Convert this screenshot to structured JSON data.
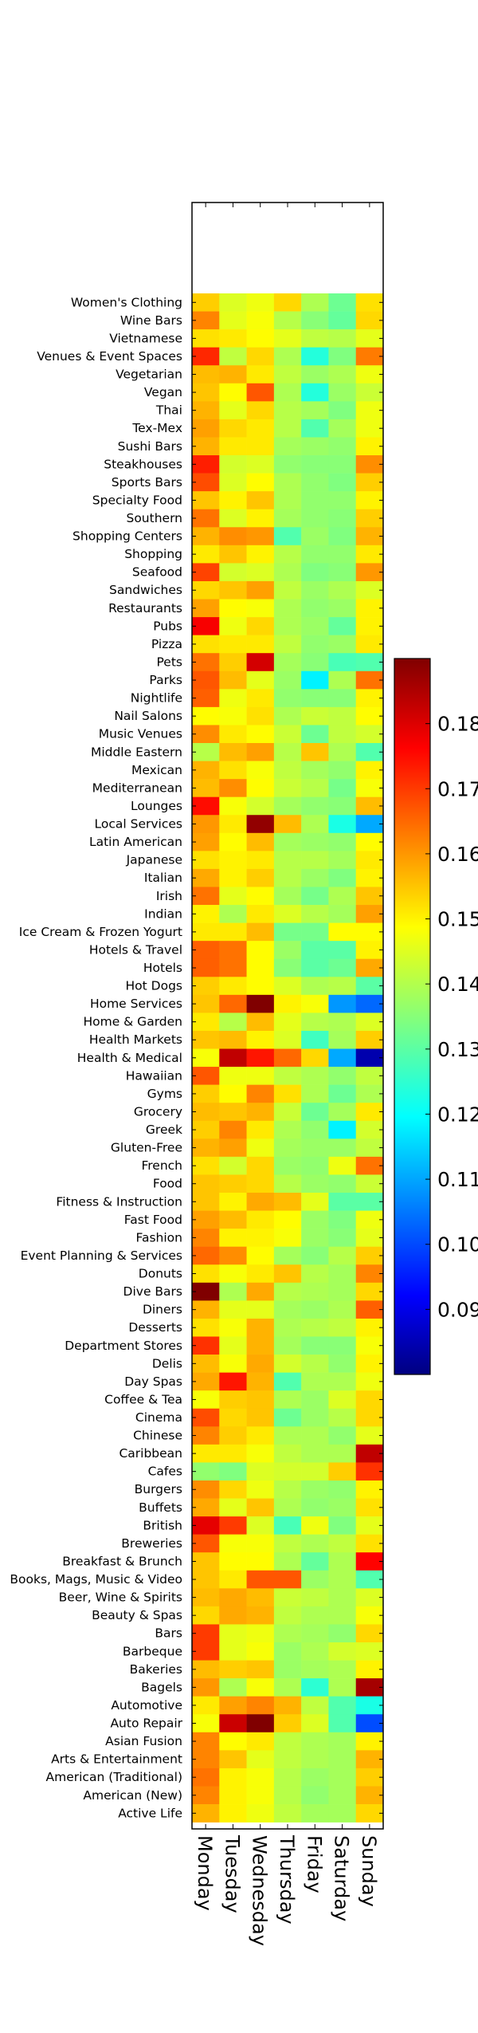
{
  "chart_data": {
    "type": "heatmap",
    "days": [
      "Monday",
      "Tuesday",
      "Wednesday",
      "Thursday",
      "Friday",
      "Saturday",
      "Sunday"
    ],
    "categories": [
      "Women's Clothing",
      "Wine Bars",
      "Vietnamese",
      "Venues & Event Spaces",
      "Vegetarian",
      "Vegan",
      "Thai",
      "Tex-Mex",
      "Sushi Bars",
      "Steakhouses",
      "Sports Bars",
      "Specialty Food",
      "Southern",
      "Shopping Centers",
      "Shopping",
      "Seafood",
      "Sandwiches",
      "Restaurants",
      "Pubs",
      "Pizza",
      "Pets",
      "Parks",
      "Nightlife",
      "Nail Salons",
      "Music Venues",
      "Middle Eastern",
      "Mexican",
      "Mediterranean",
      "Lounges",
      "Local Services",
      "Latin American",
      "Japanese",
      "Italian",
      "Irish",
      "Indian",
      "Ice Cream & Frozen Yogurt",
      "Hotels & Travel",
      "Hotels",
      "Hot Dogs",
      "Home Services",
      "Home & Garden",
      "Health Markets",
      "Health & Medical",
      "Hawaiian",
      "Gyms",
      "Grocery",
      "Greek",
      "Gluten-Free",
      "French",
      "Food",
      "Fitness & Instruction",
      "Fast Food",
      "Fashion",
      "Event Planning & Services",
      "Donuts",
      "Dive Bars",
      "Diners",
      "Desserts",
      "Department Stores",
      "Delis",
      "Day Spas",
      "Coffee & Tea",
      "Cinema",
      "Chinese",
      "Caribbean",
      "Cafes",
      "Burgers",
      "Buffets",
      "British",
      "Breweries",
      "Breakfast & Brunch",
      "Books, Mags, Music & Video",
      "Beer, Wine & Spirits",
      "Beauty & Spas",
      "Bars",
      "Barbeque",
      "Bakeries",
      "Bagels",
      "Automotive",
      "Auto Repair",
      "Asian Fusion",
      "Arts & Entertainment",
      "American (Traditional)",
      "American (New)",
      "Active Life"
    ],
    "values": [
      [
        0.154,
        0.145,
        0.147,
        0.153,
        0.14,
        0.133,
        0.152
      ],
      [
        0.162,
        0.146,
        0.148,
        0.141,
        0.136,
        0.132,
        0.153
      ],
      [
        0.152,
        0.151,
        0.149,
        0.146,
        0.142,
        0.141,
        0.146
      ],
      [
        0.172,
        0.142,
        0.153,
        0.14,
        0.125,
        0.135,
        0.163
      ],
      [
        0.156,
        0.157,
        0.151,
        0.142,
        0.138,
        0.14,
        0.147
      ],
      [
        0.155,
        0.149,
        0.167,
        0.14,
        0.125,
        0.138,
        0.143
      ],
      [
        0.157,
        0.146,
        0.153,
        0.141,
        0.139,
        0.135,
        0.147
      ],
      [
        0.159,
        0.153,
        0.151,
        0.141,
        0.13,
        0.139,
        0.147
      ],
      [
        0.157,
        0.151,
        0.151,
        0.139,
        0.138,
        0.137,
        0.15
      ],
      [
        0.173,
        0.144,
        0.145,
        0.137,
        0.136,
        0.136,
        0.161
      ],
      [
        0.168,
        0.145,
        0.149,
        0.14,
        0.137,
        0.135,
        0.154
      ],
      [
        0.155,
        0.15,
        0.155,
        0.14,
        0.137,
        0.137,
        0.15
      ],
      [
        0.164,
        0.145,
        0.15,
        0.139,
        0.137,
        0.136,
        0.154
      ],
      [
        0.157,
        0.161,
        0.16,
        0.13,
        0.138,
        0.135,
        0.157
      ],
      [
        0.151,
        0.155,
        0.15,
        0.141,
        0.137,
        0.137,
        0.151
      ],
      [
        0.169,
        0.144,
        0.145,
        0.14,
        0.135,
        0.136,
        0.16
      ],
      [
        0.153,
        0.155,
        0.159,
        0.142,
        0.138,
        0.14,
        0.145
      ],
      [
        0.159,
        0.149,
        0.148,
        0.14,
        0.137,
        0.138,
        0.15
      ],
      [
        0.177,
        0.147,
        0.153,
        0.14,
        0.138,
        0.132,
        0.15
      ],
      [
        0.152,
        0.151,
        0.151,
        0.142,
        0.137,
        0.138,
        0.151
      ],
      [
        0.164,
        0.154,
        0.181,
        0.139,
        0.136,
        0.129,
        0.13
      ],
      [
        0.167,
        0.156,
        0.146,
        0.138,
        0.12,
        0.14,
        0.164
      ],
      [
        0.166,
        0.147,
        0.151,
        0.137,
        0.136,
        0.136,
        0.15
      ],
      [
        0.149,
        0.148,
        0.152,
        0.14,
        0.143,
        0.142,
        0.149
      ],
      [
        0.161,
        0.151,
        0.149,
        0.143,
        0.133,
        0.142,
        0.144
      ],
      [
        0.141,
        0.156,
        0.159,
        0.141,
        0.155,
        0.14,
        0.13
      ],
      [
        0.157,
        0.152,
        0.148,
        0.142,
        0.139,
        0.137,
        0.15
      ],
      [
        0.156,
        0.161,
        0.149,
        0.143,
        0.141,
        0.134,
        0.148
      ],
      [
        0.175,
        0.148,
        0.144,
        0.139,
        0.137,
        0.136,
        0.156
      ],
      [
        0.16,
        0.151,
        0.188,
        0.156,
        0.14,
        0.124,
        0.112
      ],
      [
        0.159,
        0.149,
        0.156,
        0.139,
        0.138,
        0.137,
        0.149
      ],
      [
        0.152,
        0.15,
        0.151,
        0.141,
        0.141,
        0.139,
        0.151
      ],
      [
        0.158,
        0.15,
        0.154,
        0.141,
        0.138,
        0.135,
        0.15
      ],
      [
        0.164,
        0.146,
        0.149,
        0.139,
        0.134,
        0.14,
        0.155
      ],
      [
        0.15,
        0.14,
        0.151,
        0.145,
        0.141,
        0.139,
        0.159
      ],
      [
        0.151,
        0.151,
        0.156,
        0.134,
        0.134,
        0.149,
        0.149
      ],
      [
        0.166,
        0.164,
        0.149,
        0.138,
        0.131,
        0.131,
        0.15
      ],
      [
        0.166,
        0.164,
        0.149,
        0.136,
        0.131,
        0.133,
        0.158
      ],
      [
        0.154,
        0.151,
        0.149,
        0.145,
        0.14,
        0.141,
        0.131
      ],
      [
        0.155,
        0.165,
        0.19,
        0.15,
        0.148,
        0.11,
        0.105
      ],
      [
        0.151,
        0.141,
        0.156,
        0.146,
        0.141,
        0.14,
        0.145
      ],
      [
        0.155,
        0.156,
        0.15,
        0.145,
        0.128,
        0.139,
        0.154
      ],
      [
        0.148,
        0.183,
        0.174,
        0.165,
        0.153,
        0.112,
        0.085
      ],
      [
        0.167,
        0.147,
        0.147,
        0.142,
        0.14,
        0.137,
        0.142
      ],
      [
        0.154,
        0.149,
        0.162,
        0.152,
        0.14,
        0.133,
        0.14
      ],
      [
        0.156,
        0.155,
        0.157,
        0.143,
        0.133,
        0.139,
        0.151
      ],
      [
        0.154,
        0.162,
        0.151,
        0.14,
        0.137,
        0.12,
        0.144
      ],
      [
        0.157,
        0.159,
        0.147,
        0.139,
        0.138,
        0.138,
        0.142
      ],
      [
        0.152,
        0.144,
        0.153,
        0.138,
        0.137,
        0.147,
        0.164
      ],
      [
        0.155,
        0.154,
        0.153,
        0.141,
        0.138,
        0.137,
        0.143
      ],
      [
        0.155,
        0.15,
        0.158,
        0.156,
        0.146,
        0.131,
        0.131
      ],
      [
        0.159,
        0.156,
        0.151,
        0.149,
        0.138,
        0.135,
        0.147
      ],
      [
        0.162,
        0.15,
        0.15,
        0.148,
        0.138,
        0.136,
        0.146
      ],
      [
        0.165,
        0.161,
        0.149,
        0.139,
        0.136,
        0.141,
        0.154
      ],
      [
        0.152,
        0.148,
        0.151,
        0.155,
        0.141,
        0.139,
        0.162
      ],
      [
        0.19,
        0.14,
        0.158,
        0.141,
        0.14,
        0.139,
        0.153
      ],
      [
        0.157,
        0.146,
        0.146,
        0.139,
        0.138,
        0.14,
        0.166
      ],
      [
        0.152,
        0.148,
        0.157,
        0.14,
        0.141,
        0.142,
        0.15
      ],
      [
        0.171,
        0.146,
        0.157,
        0.139,
        0.136,
        0.136,
        0.148
      ],
      [
        0.156,
        0.148,
        0.158,
        0.144,
        0.141,
        0.137,
        0.15
      ],
      [
        0.158,
        0.174,
        0.157,
        0.13,
        0.14,
        0.14,
        0.147
      ],
      [
        0.148,
        0.154,
        0.155,
        0.14,
        0.138,
        0.145,
        0.153
      ],
      [
        0.168,
        0.153,
        0.155,
        0.133,
        0.138,
        0.141,
        0.153
      ],
      [
        0.162,
        0.154,
        0.151,
        0.14,
        0.14,
        0.137,
        0.146
      ],
      [
        0.151,
        0.151,
        0.148,
        0.142,
        0.14,
        0.14,
        0.183
      ],
      [
        0.137,
        0.135,
        0.145,
        0.144,
        0.144,
        0.154,
        0.171
      ],
      [
        0.161,
        0.153,
        0.147,
        0.141,
        0.138,
        0.137,
        0.15
      ],
      [
        0.158,
        0.146,
        0.155,
        0.14,
        0.137,
        0.138,
        0.152
      ],
      [
        0.179,
        0.17,
        0.145,
        0.129,
        0.147,
        0.135,
        0.146
      ],
      [
        0.167,
        0.148,
        0.148,
        0.142,
        0.14,
        0.142,
        0.152
      ],
      [
        0.155,
        0.149,
        0.149,
        0.14,
        0.132,
        0.14,
        0.176
      ],
      [
        0.155,
        0.151,
        0.167,
        0.167,
        0.138,
        0.14,
        0.13
      ],
      [
        0.156,
        0.158,
        0.156,
        0.143,
        0.142,
        0.14,
        0.145
      ],
      [
        0.153,
        0.158,
        0.157,
        0.142,
        0.14,
        0.14,
        0.148
      ],
      [
        0.17,
        0.146,
        0.147,
        0.14,
        0.139,
        0.137,
        0.153
      ],
      [
        0.17,
        0.146,
        0.148,
        0.138,
        0.14,
        0.144,
        0.145
      ],
      [
        0.156,
        0.154,
        0.155,
        0.138,
        0.139,
        0.14,
        0.15
      ],
      [
        0.16,
        0.14,
        0.148,
        0.14,
        0.126,
        0.14,
        0.186
      ],
      [
        0.151,
        0.159,
        0.162,
        0.157,
        0.142,
        0.13,
        0.124
      ],
      [
        0.148,
        0.182,
        0.19,
        0.154,
        0.145,
        0.13,
        0.102
      ],
      [
        0.162,
        0.149,
        0.151,
        0.142,
        0.14,
        0.139,
        0.15
      ],
      [
        0.162,
        0.155,
        0.146,
        0.142,
        0.14,
        0.139,
        0.157
      ],
      [
        0.164,
        0.15,
        0.148,
        0.141,
        0.138,
        0.139,
        0.154
      ],
      [
        0.162,
        0.15,
        0.148,
        0.141,
        0.137,
        0.139,
        0.157
      ],
      [
        0.157,
        0.15,
        0.147,
        0.142,
        0.139,
        0.139,
        0.153
      ]
    ],
    "colorbar": {
      "range": [
        0.08,
        0.19
      ],
      "ticks": [
        0.09,
        0.1,
        0.11,
        0.12,
        0.13,
        0.14,
        0.15,
        0.16,
        0.17,
        0.18
      ],
      "tick_labels": [
        "0.09",
        "0.10",
        "0.11",
        "0.12",
        "0.13",
        "0.14",
        "0.15",
        "0.16",
        "0.17",
        "0.18"
      ],
      "colormap": "jet"
    }
  }
}
